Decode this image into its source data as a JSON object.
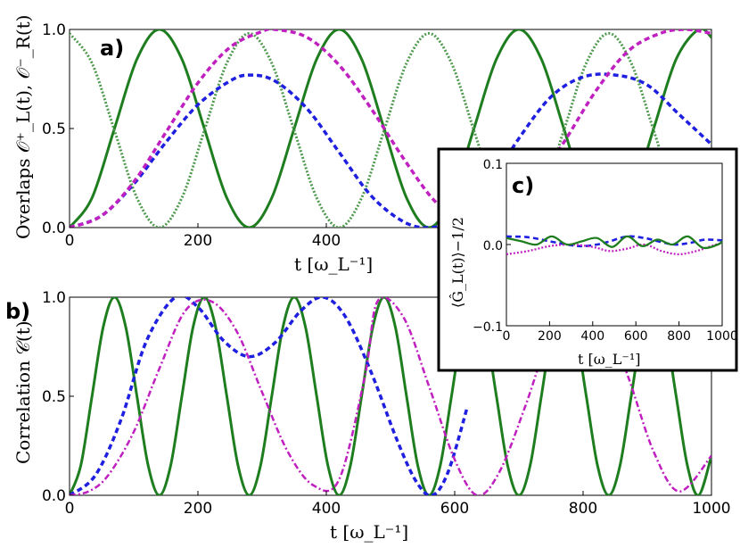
{
  "chart_data": [
    {
      "panel": "a)",
      "type": "line",
      "ylabel": "Overlaps 𝒪⁺_L(t), 𝒪⁻_R(t)",
      "xlabel": "t [ω_L⁻¹]",
      "xlim": [
        0,
        1000
      ],
      "ylim": [
        0,
        1
      ],
      "xticks": [
        "0",
        "200",
        "400"
      ],
      "yticks": [
        "0.0",
        "0.5",
        "1.0"
      ],
      "series": [
        {
          "name": "green solid",
          "style": "solid",
          "color": "#1e7d1e",
          "x": [
            0,
            35,
            70,
            105,
            140,
            175,
            210,
            245,
            280,
            315,
            350,
            385,
            420,
            455,
            490,
            525,
            560,
            595,
            630,
            665,
            700,
            735,
            770,
            805,
            840,
            875,
            910,
            945,
            980,
            1000
          ],
          "values": [
            0.0,
            0.15,
            0.5,
            0.85,
            1.0,
            0.85,
            0.5,
            0.15,
            0.0,
            0.15,
            0.5,
            0.85,
            1.0,
            0.85,
            0.5,
            0.15,
            0.0,
            0.15,
            0.5,
            0.85,
            1.0,
            0.85,
            0.5,
            0.15,
            0.0,
            0.15,
            0.5,
            0.85,
            1.0,
            0.96
          ]
        },
        {
          "name": "green dotted",
          "style": "dotted",
          "color": "#4f9a4f",
          "x": [
            0,
            35,
            70,
            105,
            140,
            175,
            210,
            245,
            280,
            315,
            350,
            385,
            420,
            455,
            490,
            525,
            560,
            595,
            630,
            665,
            700,
            735,
            770,
            805,
            840,
            875,
            910,
            945,
            980,
            1000
          ],
          "values": [
            0.98,
            0.83,
            0.49,
            0.15,
            0.0,
            0.15,
            0.49,
            0.83,
            0.98,
            0.83,
            0.49,
            0.15,
            0.0,
            0.15,
            0.49,
            0.83,
            0.98,
            0.83,
            0.49,
            0.15,
            0.0,
            0.15,
            0.49,
            0.83,
            0.98,
            0.83,
            0.49,
            0.15,
            0.0,
            0.03
          ]
        },
        {
          "name": "blue dashed",
          "style": "dashed",
          "color": "#1f1fe0",
          "x": [
            0,
            50,
            100,
            150,
            200,
            250,
            280,
            320,
            370,
            420,
            470,
            520,
            560,
            600,
            650,
            700,
            750,
            800,
            850,
            900,
            950,
            1000
          ],
          "values": [
            0.0,
            0.06,
            0.22,
            0.43,
            0.62,
            0.74,
            0.77,
            0.74,
            0.6,
            0.38,
            0.16,
            0.03,
            0.0,
            0.04,
            0.2,
            0.45,
            0.66,
            0.76,
            0.77,
            0.72,
            0.57,
            0.42
          ]
        },
        {
          "name": "magenta dashed",
          "style": "dashed",
          "color": "#c020c0",
          "x": [
            0,
            50,
            100,
            150,
            200,
            250,
            300,
            320,
            370,
            420,
            470,
            520,
            570,
            620,
            640,
            670,
            720,
            770,
            820,
            870,
            920,
            960,
            1000
          ],
          "values": [
            0.0,
            0.06,
            0.23,
            0.48,
            0.73,
            0.91,
            0.99,
            1.0,
            0.96,
            0.82,
            0.6,
            0.35,
            0.13,
            0.01,
            0.0,
            0.04,
            0.19,
            0.43,
            0.69,
            0.89,
            0.98,
            1.0,
            0.98
          ]
        }
      ]
    },
    {
      "panel": "b)",
      "type": "line",
      "ylabel": "Correlation 𝒞(t)",
      "xlabel": "t [ω_L⁻¹]",
      "xlim": [
        0,
        1000
      ],
      "ylim": [
        0,
        1
      ],
      "xticks": [
        "0",
        "200",
        "400",
        "600",
        "800",
        "1000"
      ],
      "yticks": [
        "0.0",
        "0.5",
        "1.0"
      ],
      "series": [
        {
          "name": "green solid",
          "style": "solid",
          "color": "#1e7d1e",
          "x": [
            0,
            17.5,
            35,
            52.5,
            70,
            87.5,
            105,
            122.5,
            140,
            157.5,
            175,
            192.5,
            210,
            227.5,
            245,
            262.5,
            280,
            297.5,
            315,
            332.5,
            350,
            367.5,
            385,
            402.5,
            420,
            437.5,
            455,
            472.5,
            490,
            507.5,
            525,
            542.5,
            560,
            577.5,
            595,
            612.5,
            630,
            647.5,
            665,
            682.5,
            700,
            717.5,
            735,
            752.5,
            770,
            787.5,
            805,
            822.5,
            840,
            857.5,
            875,
            892.5,
            910,
            927.5,
            945,
            962.5,
            980,
            1000
          ],
          "values": [
            0,
            0.15,
            0.5,
            0.85,
            1,
            0.85,
            0.5,
            0.15,
            0,
            0.15,
            0.5,
            0.85,
            1,
            0.85,
            0.5,
            0.15,
            0,
            0.15,
            0.5,
            0.85,
            1,
            0.85,
            0.5,
            0.15,
            0,
            0.15,
            0.5,
            0.85,
            1,
            0.85,
            0.5,
            0.15,
            0,
            0.15,
            0.5,
            0.85,
            1,
            0.85,
            0.5,
            0.15,
            0,
            0.15,
            0.5,
            0.85,
            1,
            0.85,
            0.5,
            0.15,
            0,
            0.15,
            0.5,
            0.85,
            1,
            0.85,
            0.5,
            0.15,
            0,
            0.2
          ]
        },
        {
          "name": "blue dashed",
          "style": "dashed",
          "color": "#1f1fe0",
          "x": [
            0,
            40,
            80,
            120,
            165,
            200,
            240,
            280,
            320,
            360,
            395,
            430,
            470,
            510,
            540,
            565,
            590,
            620
          ],
          "values": [
            0,
            0.1,
            0.38,
            0.78,
            1.0,
            0.95,
            0.78,
            0.7,
            0.77,
            0.93,
            1.0,
            0.9,
            0.62,
            0.28,
            0.07,
            0.0,
            0.12,
            0.45
          ]
        },
        {
          "name": "magenta dash-dot",
          "style": "dashdot",
          "color": "#c020c0",
          "x": [
            0,
            30,
            60,
            100,
            140,
            180,
            220,
            260,
            300,
            340,
            380,
            420,
            460,
            480,
            520,
            560,
            600,
            635,
            670,
            710,
            750,
            790,
            830,
            870,
            910,
            950,
            1000
          ],
          "values": [
            0,
            0.02,
            0.1,
            0.32,
            0.64,
            0.93,
            0.98,
            0.83,
            0.52,
            0.22,
            0.05,
            0.08,
            0.6,
            0.98,
            0.9,
            0.55,
            0.18,
            0.0,
            0.12,
            0.45,
            0.82,
            1.0,
            0.92,
            0.6,
            0.22,
            0.02,
            0.2
          ]
        }
      ]
    },
    {
      "panel": "c)",
      "type": "line",
      "ylabel": "⟨Ĝ_L(t)⟩−1/2",
      "xlabel": "t [ω_L⁻¹]",
      "xlim": [
        0,
        1000
      ],
      "ylim": [
        -0.1,
        0.1
      ],
      "xticks": [
        "0",
        "200",
        "400",
        "600",
        "800",
        "1000"
      ],
      "yticks": [
        "−0.1",
        "0.0",
        "0.1"
      ],
      "series": [
        {
          "name": "blue dashed",
          "style": "dashed",
          "color": "#1f1fe0",
          "x": [
            0,
            100,
            200,
            280,
            350,
            420,
            480,
            560,
            640,
            720,
            780,
            850,
            920,
            1000
          ],
          "values": [
            0.01,
            0.009,
            0.004,
            0.0,
            -0.002,
            0.0,
            0.004,
            0.01,
            0.008,
            0.003,
            0.0,
            0.002,
            0.006,
            0.005
          ]
        },
        {
          "name": "magenta dotted",
          "style": "dotted",
          "color": "#c020c0",
          "x": [
            0,
            100,
            200,
            300,
            400,
            480,
            560,
            640,
            720,
            800,
            880,
            960,
            1000
          ],
          "values": [
            -0.012,
            -0.008,
            -0.002,
            0.0,
            -0.003,
            -0.008,
            -0.005,
            0.0,
            -0.008,
            -0.012,
            -0.008,
            -0.001,
            0.002
          ]
        },
        {
          "name": "green solid",
          "style": "solid",
          "color": "#1e7d1e",
          "x": [
            0,
            70,
            140,
            210,
            280,
            350,
            420,
            490,
            560,
            630,
            700,
            770,
            840,
            910,
            980,
            1000
          ],
          "values": [
            0.008,
            0.004,
            0.0,
            0.01,
            0.0,
            0.004,
            0.008,
            -0.003,
            0.01,
            -0.002,
            0.006,
            0.0,
            0.01,
            -0.004,
            0.0,
            0.004
          ]
        }
      ]
    }
  ]
}
